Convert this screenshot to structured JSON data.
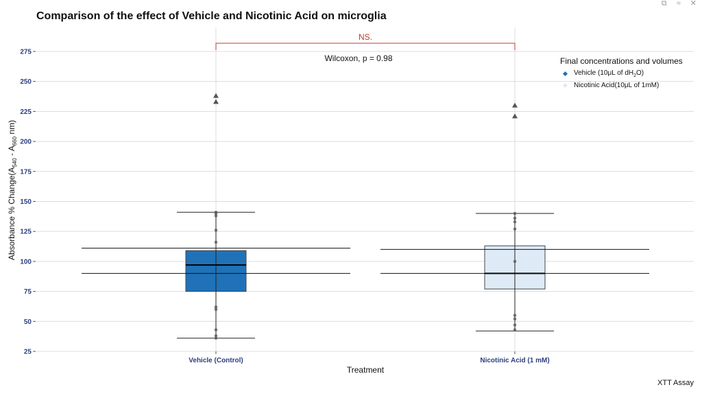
{
  "window": {
    "controls": [
      "⧉",
      "≈",
      "✕"
    ]
  },
  "chart_data": {
    "type": "box",
    "title": "Comparison of the effect of Vehicle and Nicotinic Acid on microglia",
    "xlabel": "Treatment",
    "ylabel_main": "Absorbance % Change(A",
    "ylabel_sub1": "540",
    "ylabel_mid": " - A",
    "ylabel_sub2": "660",
    "ylabel_end": " nm)",
    "caption": "XTT Assay",
    "ylim": [
      25,
      295
    ],
    "yticks": [
      25,
      50,
      75,
      100,
      125,
      150,
      175,
      200,
      225,
      250,
      275
    ],
    "categories": [
      "Vehicle (Control)",
      "Nicotinic Acid  (1 mM)"
    ],
    "colors": [
      "#1f72b8",
      "#deebf7"
    ],
    "grid": true,
    "boxes": [
      {
        "category": "Vehicle (Control)",
        "whisker_low": 36,
        "q1": 75,
        "median": 97,
        "q3": 109,
        "whisker_high": 141,
        "mean_line": 90,
        "upper_line": 111,
        "points": [
          36,
          38,
          43,
          60,
          62,
          116,
          126,
          138,
          140,
          141
        ],
        "outliers": [
          233,
          238
        ]
      },
      {
        "category": "Nicotinic Acid  (1 mM)",
        "whisker_low": 42,
        "q1": 77,
        "median": 90,
        "q3": 113,
        "whisker_high": 140,
        "mean_line": 90,
        "upper_line": 110,
        "points": [
          43,
          47,
          52,
          55,
          100,
          127,
          133,
          136,
          140
        ],
        "outliers": [
          221,
          230
        ]
      }
    ],
    "significance": {
      "label": "NS.",
      "test": "Wilcoxon, p = 0.98",
      "color": "#c0392b"
    },
    "legend": {
      "title": "Final concentrations and volumes",
      "position": "top-right",
      "items": [
        {
          "label_pre": "Vehicle  (10μL of dH",
          "label_sub": "2",
          "label_post": "O)",
          "color": "#1f72b8"
        },
        {
          "label_pre": "Nicotinic Acid(10μL of 1mM)",
          "label_sub": "",
          "label_post": "",
          "color": "#deebf7"
        }
      ]
    }
  }
}
